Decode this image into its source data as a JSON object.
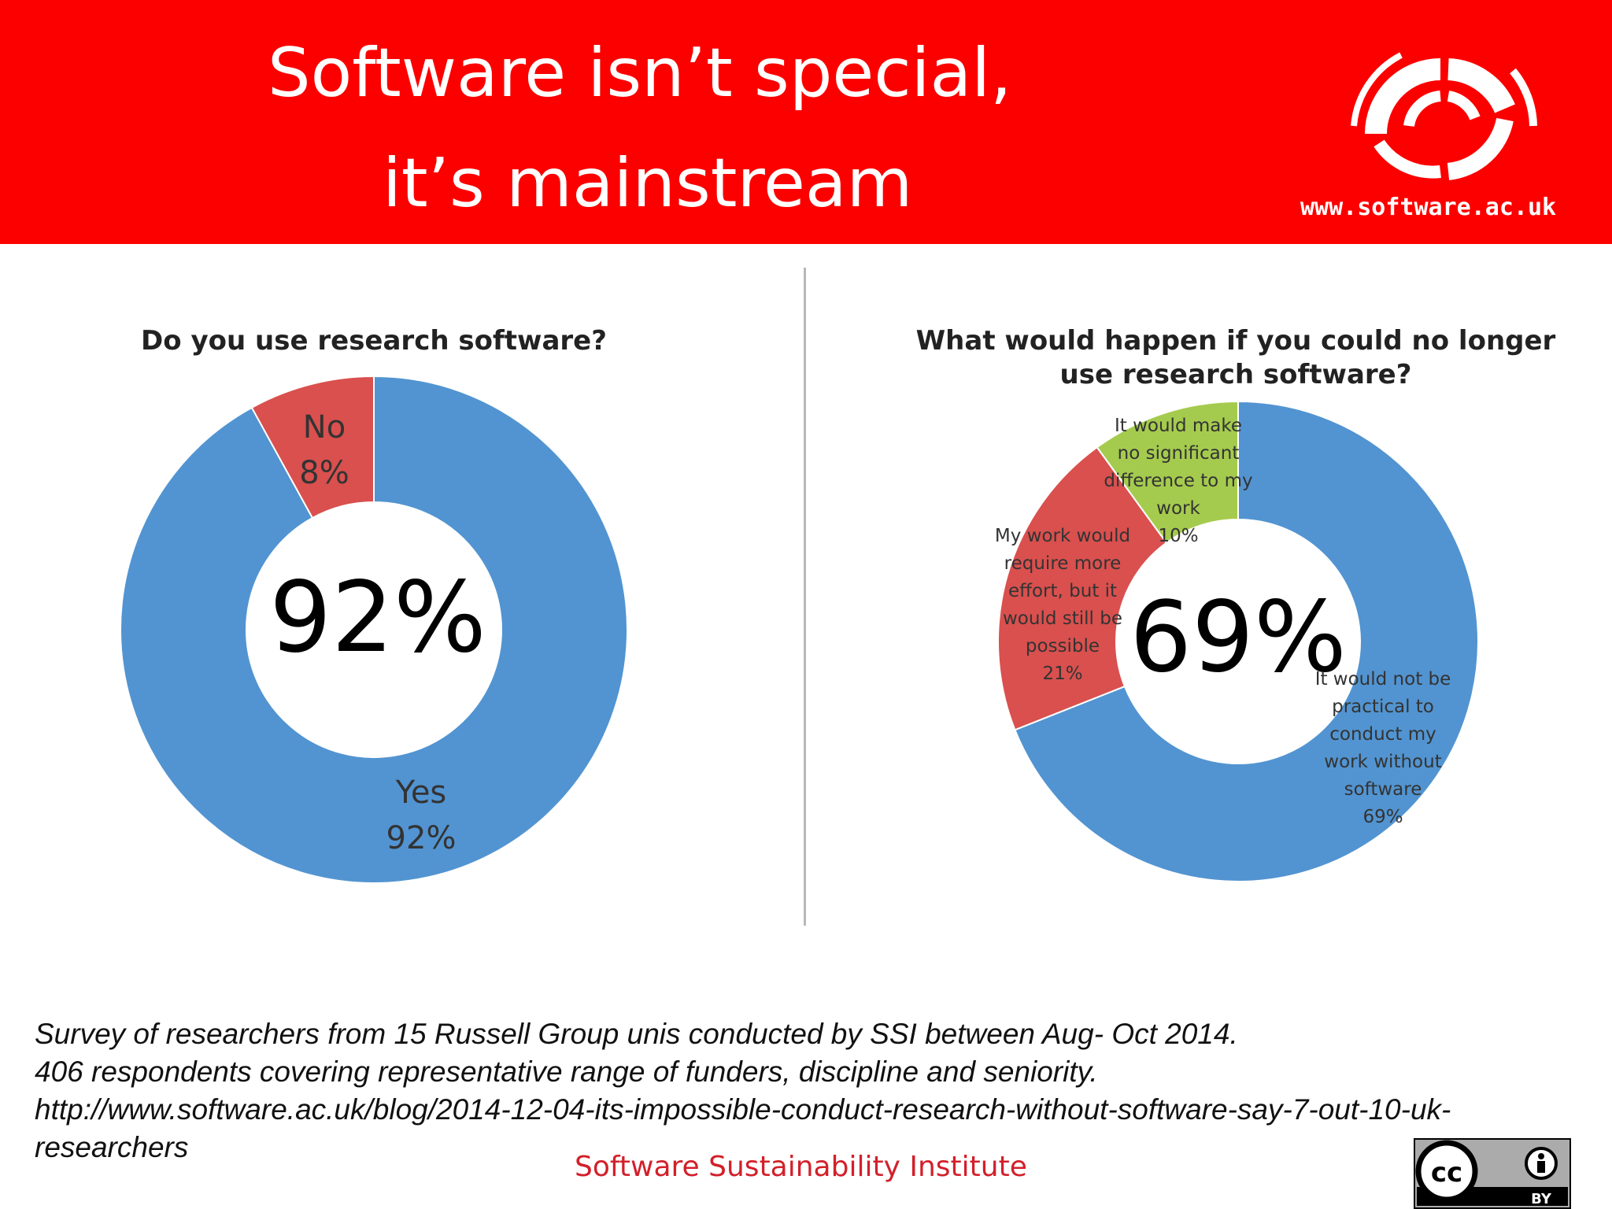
{
  "header": {
    "title_line1": "Software isn’t special,",
    "title_line2": "it’s mainstream",
    "url": "www.software.ac.uk",
    "background_color": "#fc0000",
    "logo_icon": "ssi-logo-icon"
  },
  "chart_data": [
    {
      "type": "pie",
      "variant": "donut",
      "title": "Do you use research software?",
      "center_label": "92%",
      "slices": [
        {
          "name": "Yes",
          "value": 92,
          "label_lines": [
            "Yes",
            "92%"
          ],
          "color": "#5294d1"
        },
        {
          "name": "No",
          "value": 8,
          "label_lines": [
            "No",
            "8%"
          ],
          "color": "#d9504e"
        }
      ]
    },
    {
      "type": "pie",
      "variant": "donut",
      "title": "What would happen if you could no longer use research software?",
      "title_lines": [
        "What would happen if you could no longer",
        "use research software?"
      ],
      "center_label": "69%",
      "slices": [
        {
          "name": "It would not be practical to conduct my work without software",
          "value": 69,
          "label_lines": [
            "It would not be",
            "practical to",
            "conduct my",
            "work without",
            "software",
            "69%"
          ],
          "color": "#5294d1"
        },
        {
          "name": "My work would require more effort, but it would still be possible",
          "value": 21,
          "label_lines": [
            "My work would",
            "require more",
            "effort, but it",
            "would still be",
            "possible",
            "21%"
          ],
          "color": "#d9504e"
        },
        {
          "name": "It would make no significant difference to my work",
          "value": 10,
          "label_lines": [
            "It would make",
            "no significant",
            "difference to my",
            "work",
            "10%"
          ],
          "color": "#a5cb4e"
        }
      ]
    }
  ],
  "footnote": {
    "line1": "Survey of researchers from 15 Russell Group unis conducted by SSI between Aug- Oct 2014.",
    "line2": "406 respondents covering representative range of funders, discipline and seniority.",
    "line3": "http://www.software.ac.uk/blog/2014-12-04-its-impossible-conduct-research-without-software-say-7-out-10-uk-",
    "line4": "researchers"
  },
  "footer": {
    "org_name": "Software Sustainability Institute",
    "license_badge": {
      "left_text": "cc",
      "right_text": "BY",
      "icon": "cc-by-icon"
    }
  }
}
